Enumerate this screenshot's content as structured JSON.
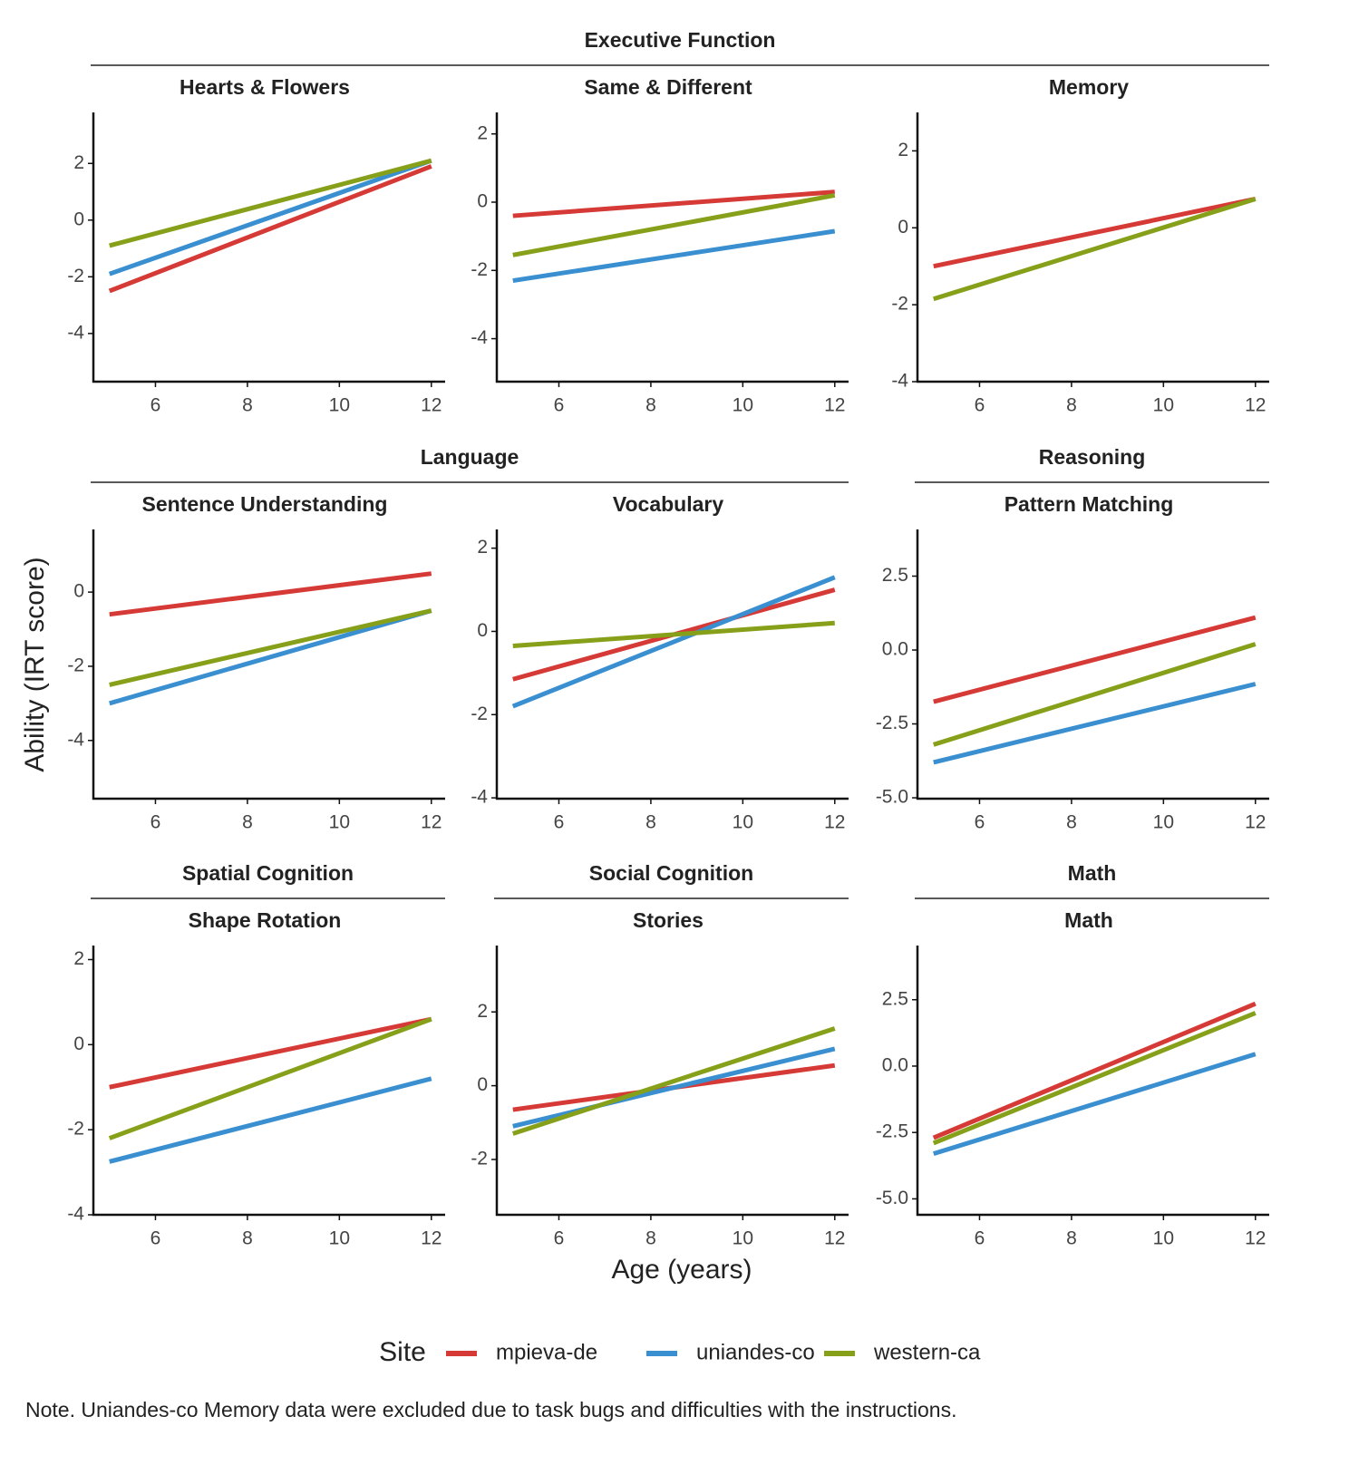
{
  "chart_data": [
    {
      "type": "line",
      "group": "Executive Function",
      "title": "Hearts & Flowers",
      "x": [
        5,
        12
      ],
      "xlim": [
        4.65,
        12.3
      ],
      "xticks": [
        6,
        8,
        10,
        12
      ],
      "ylim": [
        -5.7,
        3.8
      ],
      "yticks": [
        -4,
        -2,
        0,
        2
      ],
      "series": [
        {
          "name": "mpieva-de",
          "color": "#d63a36",
          "values": [
            -2.5,
            1.9
          ]
        },
        {
          "name": "uniandes-co",
          "color": "#3a8fd0",
          "values": [
            -1.9,
            2.1
          ]
        },
        {
          "name": "western-ca",
          "color": "#86a01a",
          "values": [
            -0.9,
            2.1
          ]
        }
      ]
    },
    {
      "type": "line",
      "title": "Same & Different",
      "x": [
        5,
        12
      ],
      "xlim": [
        4.65,
        12.3
      ],
      "xticks": [
        6,
        8,
        10,
        12
      ],
      "ylim": [
        -5.26,
        2.63
      ],
      "yticks": [
        -4,
        -2,
        0,
        2
      ],
      "series": [
        {
          "name": "mpieva-de",
          "color": "#d63a36",
          "values": [
            -0.4,
            0.3
          ]
        },
        {
          "name": "uniandes-co",
          "color": "#3a8fd0",
          "values": [
            -2.3,
            -0.85
          ]
        },
        {
          "name": "western-ca",
          "color": "#86a01a",
          "values": [
            -1.55,
            0.2
          ]
        }
      ]
    },
    {
      "type": "line",
      "title": "Memory",
      "x": [
        5,
        12
      ],
      "xlim": [
        4.65,
        12.3
      ],
      "xticks": [
        6,
        8,
        10,
        12
      ],
      "ylim": [
        -4,
        3.0
      ],
      "yticks": [
        -4,
        -2,
        0,
        2
      ],
      "series": [
        {
          "name": "mpieva-de",
          "color": "#d63a36",
          "values": [
            -1.0,
            0.75
          ]
        },
        {
          "name": "western-ca",
          "color": "#86a01a",
          "values": [
            -1.85,
            0.75
          ]
        }
      ]
    },
    {
      "type": "line",
      "group": "Language",
      "title": "Sentence Understanding",
      "x": [
        5,
        12
      ],
      "xlim": [
        4.65,
        12.3
      ],
      "xticks": [
        6,
        8,
        10,
        12
      ],
      "ylim": [
        -5.57,
        1.69
      ],
      "yticks": [
        -4,
        -2,
        0
      ],
      "series": [
        {
          "name": "mpieva-de",
          "color": "#d63a36",
          "values": [
            -0.6,
            0.5
          ]
        },
        {
          "name": "uniandes-co",
          "color": "#3a8fd0",
          "values": [
            -3.0,
            -0.5
          ]
        },
        {
          "name": "western-ca",
          "color": "#86a01a",
          "values": [
            -2.5,
            -0.5
          ]
        }
      ]
    },
    {
      "type": "line",
      "title": "Vocabulary",
      "x": [
        5,
        12
      ],
      "xlim": [
        4.65,
        12.3
      ],
      "xticks": [
        6,
        8,
        10,
        12
      ],
      "ylim": [
        -4.02,
        2.45
      ],
      "yticks": [
        -4,
        -2,
        0,
        2
      ],
      "series": [
        {
          "name": "mpieva-de",
          "color": "#d63a36",
          "values": [
            -1.15,
            1.0
          ]
        },
        {
          "name": "uniandes-co",
          "color": "#3a8fd0",
          "values": [
            -1.8,
            1.3
          ]
        },
        {
          "name": "western-ca",
          "color": "#86a01a",
          "values": [
            -0.35,
            0.2
          ]
        }
      ]
    },
    {
      "type": "line",
      "group": "Reasoning",
      "title": "Pattern Matching",
      "x": [
        5,
        12
      ],
      "xlim": [
        4.65,
        12.3
      ],
      "xticks": [
        6,
        8,
        10,
        12
      ],
      "ylim": [
        -5.03,
        4.08
      ],
      "yticks": [
        {
          "value": -5,
          "label": "-5.0"
        },
        -2.5,
        {
          "value": 0,
          "label": "0.0"
        },
        2.5
      ],
      "series": [
        {
          "name": "mpieva-de",
          "color": "#d63a36",
          "values": [
            -1.75,
            1.1
          ]
        },
        {
          "name": "uniandes-co",
          "color": "#3a8fd0",
          "values": [
            -3.8,
            -1.15
          ]
        },
        {
          "name": "western-ca",
          "color": "#86a01a",
          "values": [
            -3.2,
            0.2
          ]
        }
      ]
    },
    {
      "type": "line",
      "group": "Spatial Cognition",
      "title": "Shape Rotation",
      "x": [
        5,
        12
      ],
      "xlim": [
        4.65,
        12.3
      ],
      "xticks": [
        6,
        8,
        10,
        12
      ],
      "ylim": [
        -4,
        2.33
      ],
      "yticks": [
        -4,
        -2,
        0,
        2
      ],
      "series": [
        {
          "name": "mpieva-de",
          "color": "#d63a36",
          "values": [
            -1.0,
            0.6
          ]
        },
        {
          "name": "uniandes-co",
          "color": "#3a8fd0",
          "values": [
            -2.75,
            -0.8
          ]
        },
        {
          "name": "western-ca",
          "color": "#86a01a",
          "values": [
            -2.2,
            0.6
          ]
        }
      ]
    },
    {
      "type": "line",
      "group": "Social Cognition",
      "title": "Stories",
      "x": [
        5,
        12
      ],
      "xlim": [
        4.65,
        12.3
      ],
      "xticks": [
        6,
        8,
        10,
        12
      ],
      "ylim": [
        -3.5,
        3.8
      ],
      "yticks": [
        -2,
        0,
        2
      ],
      "series": [
        {
          "name": "mpieva-de",
          "color": "#d63a36",
          "values": [
            -0.65,
            0.55
          ]
        },
        {
          "name": "uniandes-co",
          "color": "#3a8fd0",
          "values": [
            -1.1,
            1.0
          ]
        },
        {
          "name": "western-ca",
          "color": "#86a01a",
          "values": [
            -1.3,
            1.55
          ]
        }
      ]
    },
    {
      "type": "line",
      "group": "Math",
      "title": "Math",
      "x": [
        5,
        12
      ],
      "xlim": [
        4.65,
        12.3
      ],
      "xticks": [
        6,
        8,
        10,
        12
      ],
      "ylim": [
        -5.6,
        4.54
      ],
      "yticks": [
        {
          "value": -5,
          "label": "-5.0"
        },
        -2.5,
        {
          "value": 0,
          "label": "0.0"
        },
        2.5
      ],
      "series": [
        {
          "name": "mpieva-de",
          "color": "#d63a36",
          "values": [
            -2.7,
            2.35
          ]
        },
        {
          "name": "uniandes-co",
          "color": "#3a8fd0",
          "values": [
            -3.3,
            0.45
          ]
        },
        {
          "name": "western-ca",
          "color": "#86a01a",
          "values": [
            -2.9,
            2.0
          ]
        }
      ]
    }
  ],
  "x_label": "Age (years)",
  "y_label": "Ability (IRT score)",
  "legend_title": "Site",
  "note": "Note. Uniandes-co Memory data were excluded due to task bugs and difficulties with the instructions."
}
